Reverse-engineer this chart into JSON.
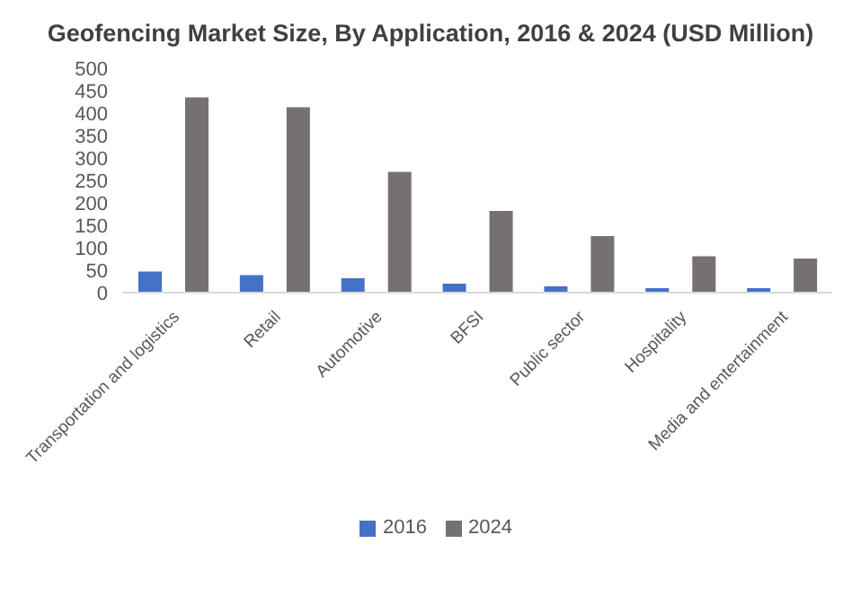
{
  "chart_data": {
    "type": "bar",
    "title": "Geofencing Market Size, By Application, 2016 & 2024 (USD Million)",
    "categories": [
      "Transportation and logistics",
      "Retail",
      "Automotive",
      "BFSI",
      "Public sector",
      "Hospitality",
      "Media and entertainment"
    ],
    "series": [
      {
        "name": "2016",
        "color": "#4472c4",
        "values": [
          47,
          39,
          32,
          20,
          14,
          10,
          10
        ]
      },
      {
        "name": "2024",
        "color": "#767171",
        "values": [
          435,
          413,
          269,
          182,
          126,
          81,
          76
        ]
      }
    ],
    "ylim": [
      0,
      500
    ],
    "yticks": [
      0,
      50,
      100,
      150,
      200,
      250,
      300,
      350,
      400,
      450,
      500
    ],
    "grid": false,
    "legend": "bottom"
  }
}
